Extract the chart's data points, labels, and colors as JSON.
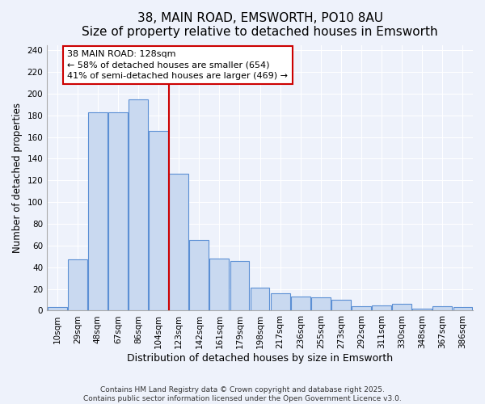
{
  "title": "38, MAIN ROAD, EMSWORTH, PO10 8AU",
  "subtitle": "Size of property relative to detached houses in Emsworth",
  "xlabel": "Distribution of detached houses by size in Emsworth",
  "ylabel": "Number of detached properties",
  "categories": [
    "10sqm",
    "29sqm",
    "48sqm",
    "67sqm",
    "86sqm",
    "104sqm",
    "123sqm",
    "142sqm",
    "161sqm",
    "179sqm",
    "198sqm",
    "217sqm",
    "236sqm",
    "255sqm",
    "273sqm",
    "292sqm",
    "311sqm",
    "330sqm",
    "348sqm",
    "367sqm",
    "386sqm"
  ],
  "values": [
    3,
    47,
    183,
    183,
    195,
    166,
    126,
    65,
    48,
    46,
    21,
    16,
    13,
    12,
    10,
    4,
    5,
    6,
    2,
    4,
    3
  ],
  "bar_color": "#c9d9f0",
  "bar_edge_color": "#5b8fd4",
  "vline_label": "38 MAIN ROAD: 128sqm",
  "vline_color": "#cc0000",
  "vline_position": 5.5,
  "annotation_line1": "← 58% of detached houses are smaller (654)",
  "annotation_line2": "41% of semi-detached houses are larger (469) →",
  "annotation_box_color": "#ffffff",
  "annotation_box_edge": "#cc0000",
  "ylim": [
    0,
    245
  ],
  "yticks": [
    0,
    20,
    40,
    60,
    80,
    100,
    120,
    140,
    160,
    180,
    200,
    220,
    240
  ],
  "background_color": "#eef2fb",
  "grid_color": "#ffffff",
  "footer1": "Contains HM Land Registry data © Crown copyright and database right 2025.",
  "footer2": "Contains public sector information licensed under the Open Government Licence v3.0.",
  "title_fontsize": 11,
  "subtitle_fontsize": 9.5,
  "xlabel_fontsize": 9,
  "ylabel_fontsize": 8.5,
  "tick_fontsize": 7.5,
  "footer_fontsize": 6.5,
  "annotation_fontsize": 8
}
